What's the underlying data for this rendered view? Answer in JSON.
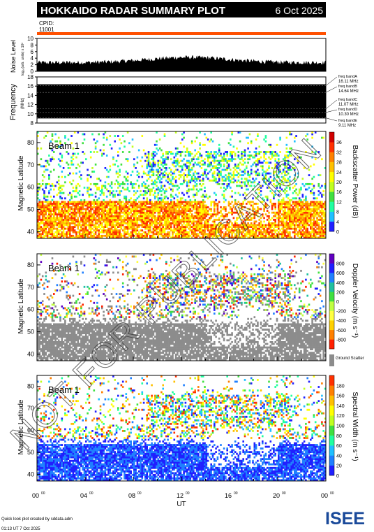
{
  "header": {
    "title": "HOKKAIDO RADAR SUMMARY PLOT",
    "date": "6 Oct 2025",
    "cpid_label": "CPID:",
    "cpid_value": "11001",
    "title_bar_color": "#000000",
    "cpid_bar_color": "#ff5000"
  },
  "noise_panel": {
    "ylabel": "Noise Level",
    "ylabel2": "log₁₀(arb. units) x 10²",
    "yticks": [
      "0",
      "2",
      "4",
      "6",
      "8",
      "10"
    ]
  },
  "frequency_panel": {
    "ylabel": "Frequency",
    "ylabel_unit": "(MHz)",
    "yticks": [
      "8",
      "10",
      "12",
      "14",
      "16",
      "18"
    ],
    "bands": [
      {
        "name": "freq bandA",
        "value": "16.11 MHz"
      },
      {
        "name": "freq bandB",
        "value": "14.64 MHz"
      },
      {
        "name": "freq bandC",
        "value": "11.07 MHz"
      },
      {
        "name": "freq bandD",
        "value": "10.30 MHz"
      },
      {
        "name": "freq bandE",
        "value": "9.11 MHz"
      }
    ]
  },
  "panels": [
    {
      "beam_label": "Beam  1",
      "ylabel": "Magnetic Latitude",
      "yticks": [
        "40",
        "50",
        "60",
        "70",
        "80"
      ],
      "colorbar_label": "Backscatter Power (dB)",
      "colorbar_ticks": [
        "0",
        "4",
        "8",
        "12",
        "16",
        "20",
        "24",
        "28",
        "32",
        "36"
      ],
      "colors": [
        "#2020ff",
        "#20c0ff",
        "#20ffa0",
        "#40e040",
        "#c0ff20",
        "#ffff00",
        "#ffc000",
        "#ff8000",
        "#ff3000",
        "#d00000"
      ]
    },
    {
      "beam_label": "Beam  1",
      "ylabel": "Magnetic Latitude",
      "yticks": [
        "40",
        "50",
        "60",
        "70",
        "80"
      ],
      "colorbar_label": "Doppler Velocity (m s⁻¹)",
      "colorbar_ticks": [
        "-800",
        "-600",
        "-400",
        "-200",
        "0",
        "200",
        "400",
        "600",
        "800"
      ],
      "colors": [
        "#ff2000",
        "#ff8000",
        "#ffd000",
        "#ffff40",
        "#c0ff40",
        "#40e040",
        "#20c0a0",
        "#2080ff",
        "#2020ff",
        "#6000c0"
      ],
      "ground_scatter_label": "Ground Scatter",
      "ground_scatter_color": "#8c8c8c"
    },
    {
      "beam_label": "Beam  1",
      "ylabel": "Magnetic Latitude",
      "yticks": [
        "40",
        "50",
        "60",
        "70",
        "80"
      ],
      "colorbar_label": "Spectral Width (m s⁻¹)",
      "colorbar_ticks": [
        "0",
        "20",
        "40",
        "60",
        "80",
        "100",
        "120",
        "140",
        "160",
        "180"
      ],
      "colors": [
        "#2020ff",
        "#2080ff",
        "#20c0ff",
        "#20ffa0",
        "#40e040",
        "#c0ff20",
        "#ffff00",
        "#ffc000",
        "#ff8000",
        "#ff3000"
      ]
    }
  ],
  "xaxis": {
    "label": "UT",
    "ticks": [
      "00",
      "04",
      "08",
      "12",
      "16",
      "20",
      "00"
    ],
    "tick_sup": "00"
  },
  "footer": {
    "line1": "Quick look plot created by sddata.adm",
    "line2": "01:13 UT  7 Oct 2025",
    "logo": "ISEE",
    "logo_colors": [
      "#1a4a9a",
      "#1a7a3a",
      "#2aa050",
      "#1a4a9a"
    ]
  },
  "watermark": "NOT FOR PUBLICATION"
}
